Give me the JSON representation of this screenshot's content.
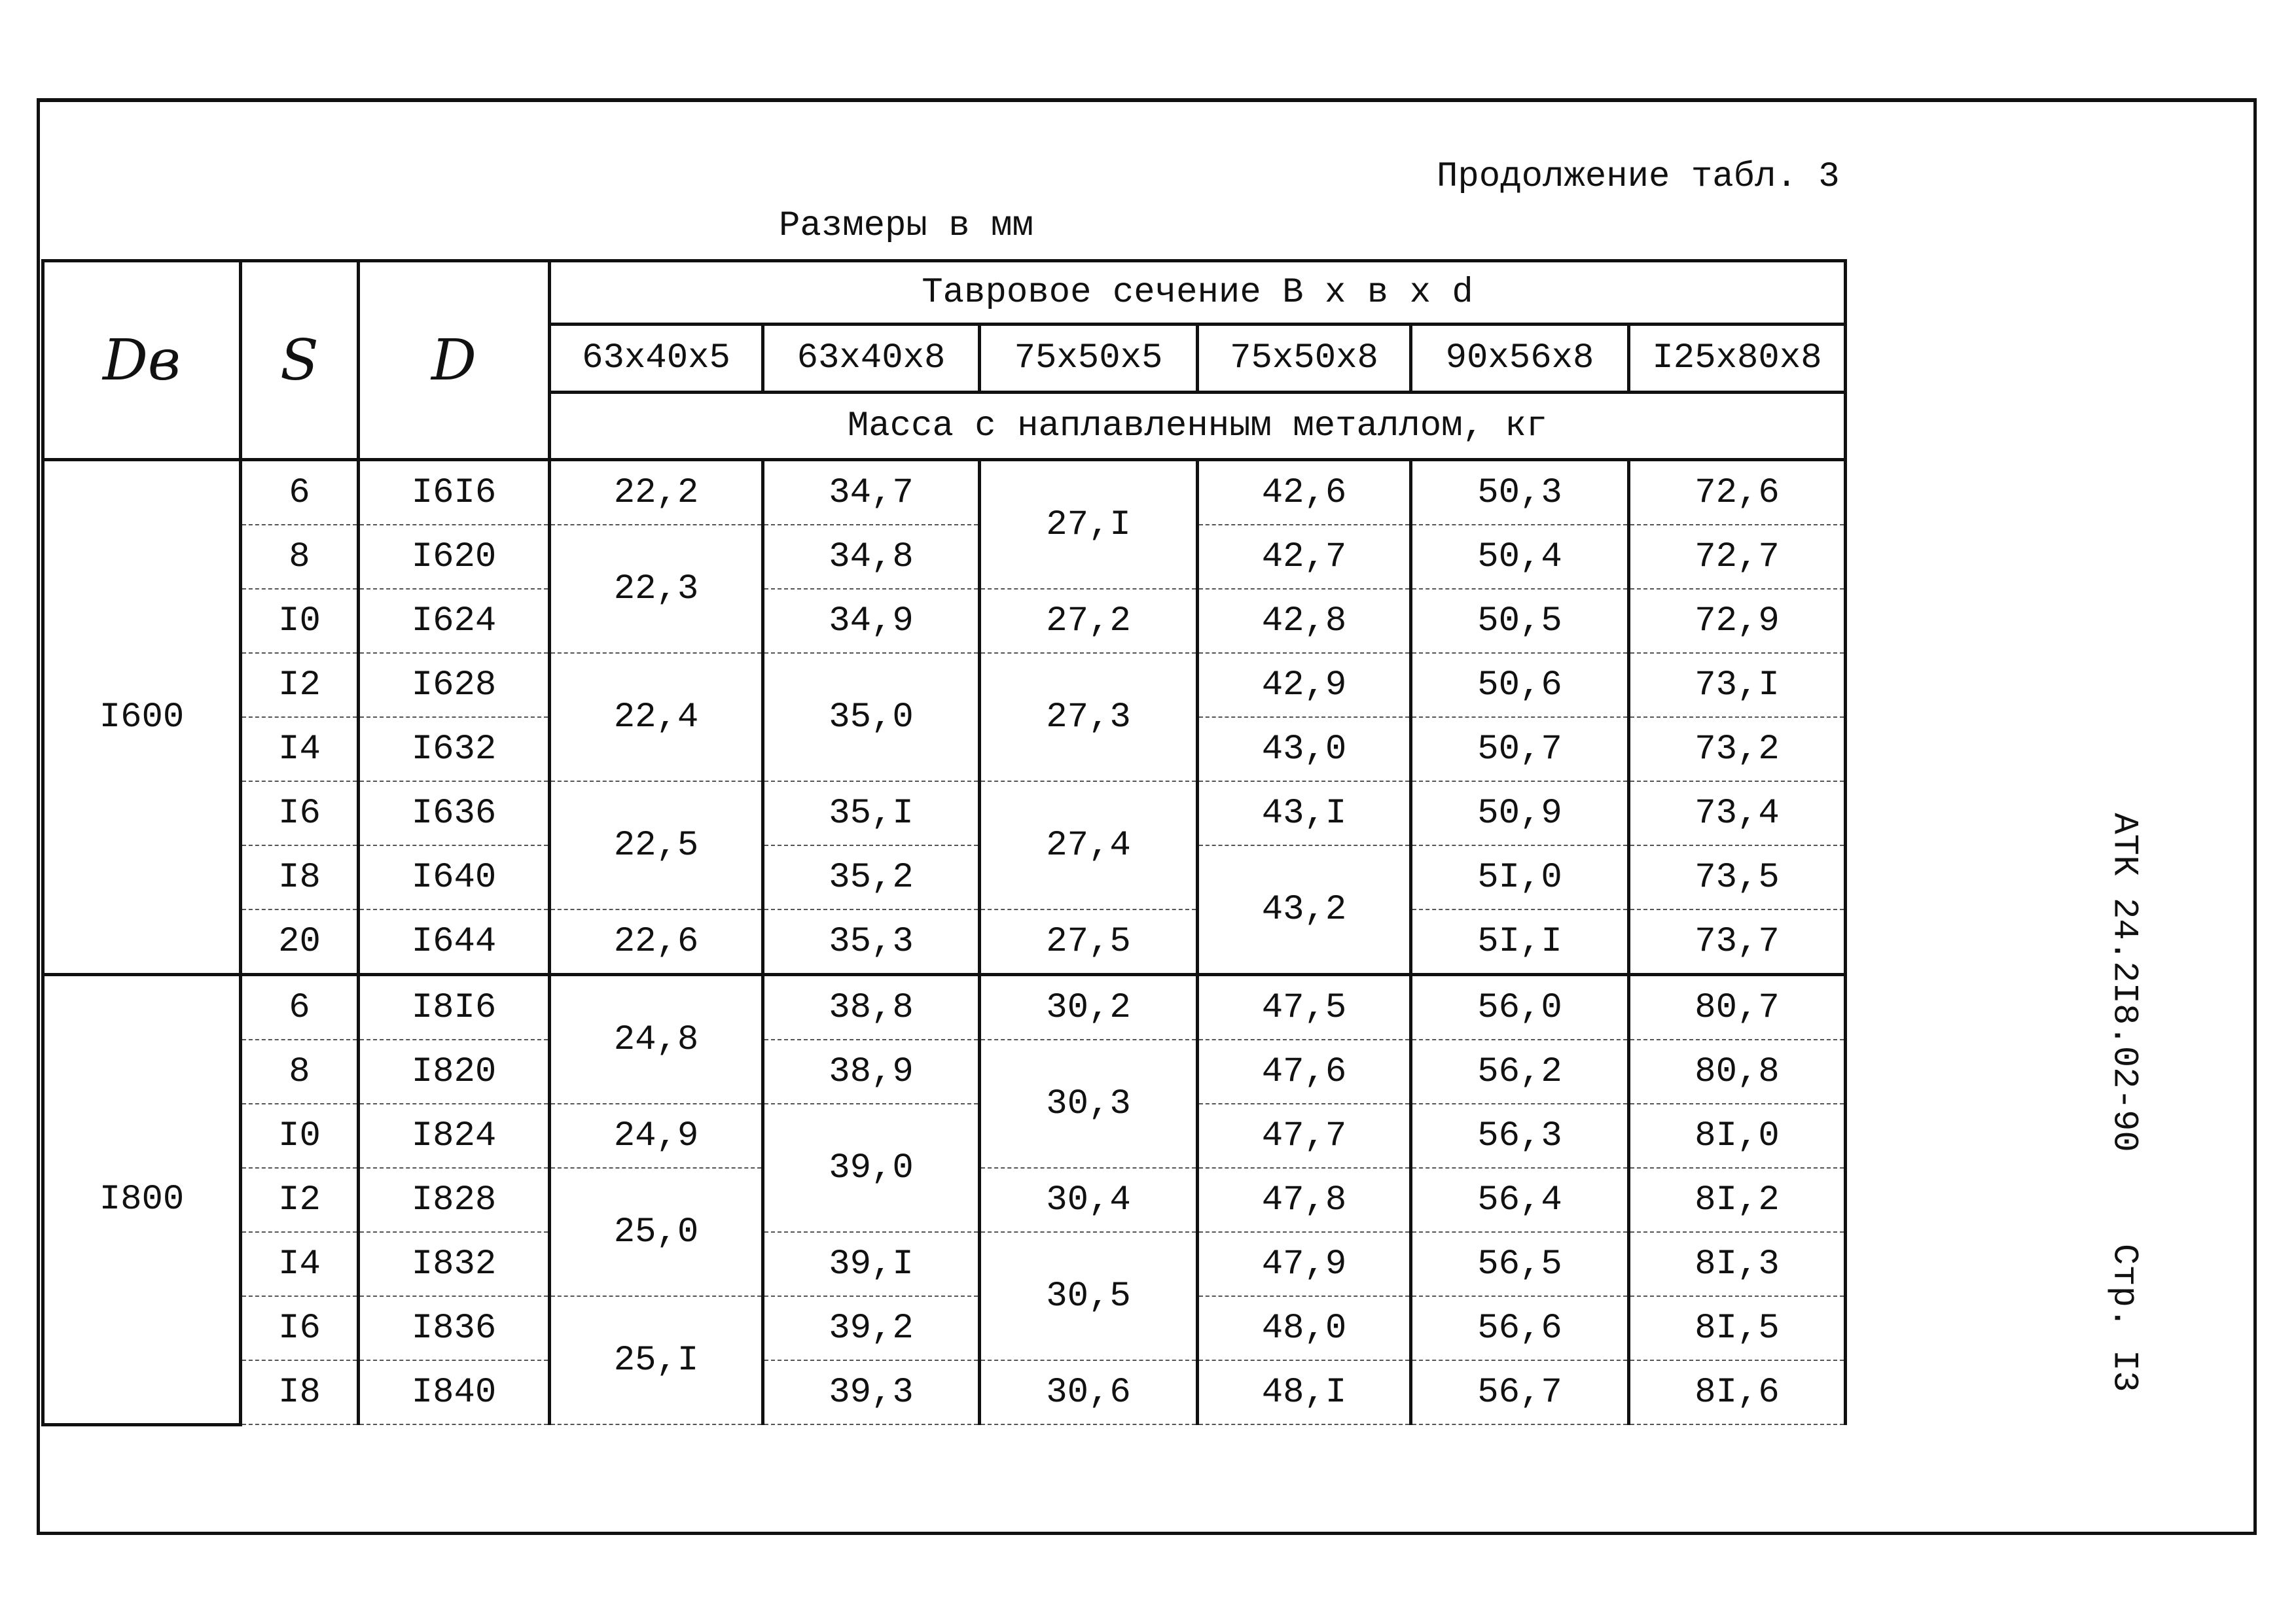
{
  "header": {
    "continuation": "Продолжение табл. 3",
    "units": "Размеры в мм"
  },
  "table": {
    "head": {
      "db": "Dв",
      "s": "S",
      "d": "D",
      "section": "Тавровое сечение  В х в х d",
      "sizes": [
        "63х40х5",
        "63х40х8",
        "75х50х5",
        "75х50х8",
        "90х56х8",
        "I25х80х8"
      ],
      "mass": "Масса с наплавленным металлом, кг"
    },
    "groups": [
      {
        "db": "I600",
        "rows": [
          [
            "6",
            "I6I6",
            "22,2",
            "34,7",
            "27,I",
            "42,6",
            "50,3",
            "72,6"
          ],
          [
            "8",
            "I620",
            "22,3",
            "34,8",
            null,
            "42,7",
            "50,4",
            "72,7"
          ],
          [
            "I0",
            "I624",
            null,
            "34,9",
            "27,2",
            "42,8",
            "50,5",
            "72,9"
          ],
          [
            "I2",
            "I628",
            "22,4",
            "35,0",
            "27,3",
            "42,9",
            "50,6",
            "73,I"
          ],
          [
            "I4",
            "I632",
            null,
            null,
            null,
            "43,0",
            "50,7",
            "73,2"
          ],
          [
            "I6",
            "I636",
            "22,5",
            "35,I",
            "27,4",
            "43,I",
            "50,9",
            "73,4"
          ],
          [
            "I8",
            "I640",
            null,
            "35,2",
            null,
            "43,2",
            "5I,0",
            "73,5"
          ],
          [
            "20",
            "I644",
            "22,6",
            "35,3",
            "27,5",
            null,
            "5I,I",
            "73,7"
          ]
        ]
      },
      {
        "db": "I800",
        "rows": [
          [
            "6",
            "I8I6",
            "24,8",
            "38,8",
            "30,2",
            "47,5",
            "56,0",
            "80,7"
          ],
          [
            "8",
            "I820",
            null,
            "38,9",
            "30,3",
            "47,6",
            "56,2",
            "80,8"
          ],
          [
            "I0",
            "I824",
            "24,9",
            "39,0",
            null,
            "47,7",
            "56,3",
            "8I,0"
          ],
          [
            "I2",
            "I828",
            "25,0",
            null,
            "30,4",
            "47,8",
            "56,4",
            "8I,2"
          ],
          [
            "I4",
            "I832",
            null,
            "39,I",
            "30,5",
            "47,9",
            "56,5",
            "8I,3"
          ],
          [
            "I6",
            "I836",
            "25,I",
            "39,2",
            null,
            "48,0",
            "56,6",
            "8I,5"
          ],
          [
            "I8",
            "I840",
            null,
            "39,3",
            "30,6",
            "48,I",
            "56,7",
            "8I,6"
          ]
        ]
      }
    ]
  },
  "side": {
    "code": "АТК 24.2I8.02-90",
    "page": "Стр. I3"
  }
}
